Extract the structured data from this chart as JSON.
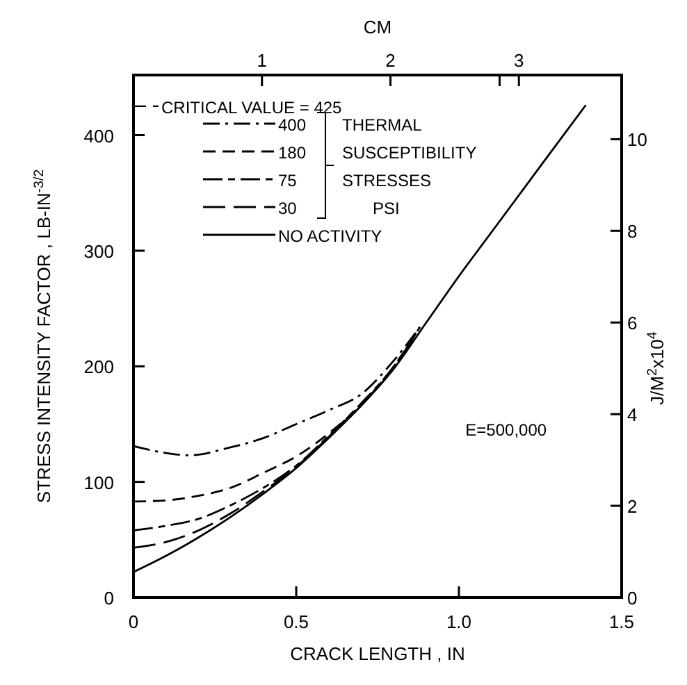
{
  "chart_data": {
    "type": "line",
    "xlabel": "CRACK LENGTH , IN",
    "ylabel": "STRESS INTENSITY FACTOR , LB-IN$^{-3/2}$",
    "y2label": "J/M$^{2}$x10$^{4}$",
    "x2label": "CM",
    "xlim": [
      0,
      1.5
    ],
    "xticks": [
      0,
      0.5,
      {
        "value": 1,
        "label": "1.0"
      },
      1.5
    ],
    "ylim": [
      0,
      452
    ],
    "yticks": [
      0,
      100,
      200,
      300,
      400
    ],
    "y2lim": [
      0,
      11.4
    ],
    "y2ticks": [
      0,
      2,
      4,
      6,
      8,
      10
    ],
    "x2lim": [
      0,
      3.8
    ],
    "x2ticks": [
      1,
      2,
      {
        "value": 2.85,
        "label": null
      },
      3
    ],
    "grid": false,
    "legend": "top left",
    "legend_title": "THERMAL\nSUSCEPTIBILITY\nSTRESSES\nPSI",
    "ref_lines": [
      {
        "axis": "y",
        "value": 425,
        "label": "CRITICAL  VALUE = 425",
        "line_style": "dashed",
        "color": "#000000"
      }
    ],
    "annotations": [
      "E=500,000"
    ],
    "series": [
      {
        "name": "400",
        "color": "#000000",
        "line_style": "dashdot",
        "x": [
          0,
          0.1,
          0.17,
          0.3,
          0.4,
          0.5,
          0.6,
          0.7,
          0.8,
          0.88
        ],
        "values": [
          131,
          125,
          123,
          130,
          138,
          150,
          162,
          176,
          205,
          234
        ]
      },
      {
        "name": "180",
        "color": "#000000",
        "line_style": "dashed",
        "x": [
          0,
          0.1,
          0.2,
          0.3,
          0.4,
          0.5,
          0.6,
          0.7,
          0.8,
          0.88
        ],
        "values": [
          83,
          84,
          88,
          95,
          108,
          122,
          142,
          167,
          200,
          234
        ]
      },
      {
        "name": "75",
        "color": "#000000",
        "line_style": "longdashdot",
        "x": [
          0,
          0.1,
          0.2,
          0.3,
          0.4,
          0.5,
          0.6,
          0.7,
          0.8,
          0.88
        ],
        "values": [
          58,
          62,
          68,
          80,
          95,
          114,
          140,
          168,
          200,
          234
        ]
      },
      {
        "name": "30",
        "color": "#000000",
        "line_style": "longdash",
        "x": [
          0,
          0.1,
          0.2,
          0.3,
          0.4,
          0.5,
          0.6,
          0.7,
          0.8,
          0.88
        ],
        "values": [
          43,
          48,
          58,
          73,
          92,
          113,
          139,
          167,
          199,
          234
        ]
      },
      {
        "name": "NO ACTIVITY",
        "color": "#000000",
        "line_style": "solid",
        "x": [
          0,
          0.1,
          0.2,
          0.3,
          0.4,
          0.5,
          0.6,
          0.7,
          0.8,
          0.9,
          1.0,
          1.1,
          1.2,
          1.3,
          1.39
        ],
        "values": [
          22,
          36,
          52,
          70,
          90,
          112,
          138,
          166,
          198,
          238,
          278,
          316,
          354,
          392,
          426
        ]
      }
    ]
  }
}
